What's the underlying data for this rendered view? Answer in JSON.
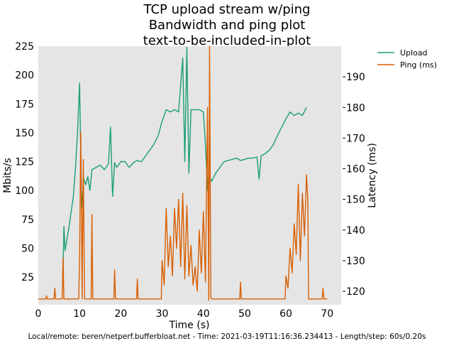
{
  "chart_data": {
    "type": "line",
    "title": [
      "TCP upload stream w/ping",
      "Bandwidth and ping plot",
      "text-to-be-included-in-plot"
    ],
    "xlabel": "Time (s)",
    "ylabel": "Mbits/s",
    "ylabel_right": "Latency (ms)",
    "xlim": [
      0,
      73.4
    ],
    "ylim": [
      1,
      225
    ],
    "ylim_right": [
      115.6,
      200
    ],
    "xticks": [
      0,
      10,
      20,
      30,
      40,
      50,
      60,
      70
    ],
    "yticks": [
      25,
      50,
      75,
      100,
      125,
      150,
      175,
      200,
      225
    ],
    "yticks_right": [
      120,
      130,
      140,
      150,
      160,
      170,
      180,
      190
    ],
    "grid": false,
    "legend_placement": "outside-top-right",
    "series": [
      {
        "name": "Upload",
        "axis": "left",
        "color": "#1b9e77",
        "x": [
          6,
          6.2,
          6.5,
          7.5,
          8.5,
          9,
          9.5,
          10,
          10.5,
          11,
          11.5,
          12,
          12.5,
          13,
          14,
          15,
          16,
          17,
          17.5,
          18,
          18.5,
          19,
          20,
          21,
          22,
          23,
          24,
          25,
          26,
          27,
          28,
          29,
          30,
          31,
          32,
          33,
          34,
          35,
          35.5,
          36,
          36.5,
          37,
          38,
          39,
          40,
          40.5,
          41,
          41.5,
          42,
          43,
          44,
          45,
          46,
          47,
          48,
          49,
          50,
          51,
          52,
          53,
          53.5,
          54,
          55,
          56,
          57,
          58,
          59,
          60,
          61,
          62,
          63,
          64,
          65
        ],
        "y": [
          30,
          69,
          48,
          70,
          95,
          120,
          150,
          193,
          85,
          110,
          105,
          112,
          100,
          118,
          120,
          122,
          118,
          123,
          155,
          95,
          124,
          120,
          125,
          125,
          120,
          124,
          126,
          125,
          130,
          135,
          140,
          147,
          160,
          170,
          168,
          170,
          168,
          215,
          125,
          224,
          115,
          170,
          170,
          170,
          168,
          140,
          100,
          112,
          108,
          115,
          120,
          125,
          126,
          127,
          128,
          126,
          127,
          128,
          128,
          129,
          110,
          130,
          132,
          135,
          140,
          148,
          155,
          162,
          168,
          165,
          167,
          165,
          172
        ]
      },
      {
        "name": "Ping (ms)",
        "axis": "right",
        "color": "#d95f02",
        "x": [
          0,
          1.8,
          2,
          2.2,
          3.8,
          4,
          4.2,
          5.8,
          6,
          6.2,
          9.8,
          10,
          10.3,
          10.6,
          10.9,
          11.2,
          12.8,
          13,
          13.2,
          18.3,
          18.5,
          18.7,
          23.8,
          24,
          24.2,
          29.8,
          30,
          30.5,
          31,
          31.5,
          32,
          32.5,
          33,
          33.5,
          34,
          34.5,
          35,
          35.5,
          36,
          36.5,
          37,
          37.5,
          38,
          38.5,
          39,
          39.5,
          40,
          40.5,
          41,
          41.3,
          41.5,
          41.8,
          42,
          48.8,
          49,
          49.2,
          59.8,
          60,
          60.5,
          61,
          61.5,
          62,
          62.5,
          63,
          63.5,
          64,
          64.5,
          65,
          65.3,
          65.5,
          68.8,
          69,
          69.2,
          70
        ],
        "y": [
          117.5,
          117.5,
          118.5,
          117.5,
          117.5,
          121,
          117.5,
          117.5,
          131,
          117.5,
          117.5,
          131,
          172,
          117.5,
          163,
          117.5,
          117.5,
          145,
          117.5,
          117.5,
          127,
          117.5,
          117.5,
          124,
          117.5,
          117.5,
          130,
          122,
          147,
          128,
          138,
          125,
          147,
          134,
          150,
          128,
          152,
          124,
          148,
          125,
          135,
          122,
          128,
          120,
          140,
          126,
          146,
          123,
          180,
          117,
          200,
          118,
          117.5,
          117.5,
          123,
          117.5,
          117.5,
          125,
          121,
          134,
          126,
          142,
          132,
          155,
          130,
          152,
          138,
          158,
          150,
          117.5,
          117.5,
          121,
          117.5,
          117.5
        ]
      }
    ],
    "footer": "Local/remote: beren/netperf.bufferbloat.net - Time: 2021-03-19T11:16:36.234413 - Length/step: 60s/0.20s"
  }
}
